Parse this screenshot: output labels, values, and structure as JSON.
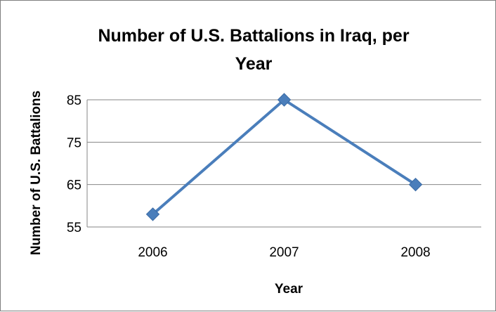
{
  "chart_data": {
    "type": "line",
    "title_lines": [
      "Number of U.S. Battalions in Iraq, per",
      "Year"
    ],
    "xlabel": "Year",
    "ylabel": "Number of U.S. Battalions",
    "categories": [
      "2006",
      "2007",
      "2008"
    ],
    "series": [
      {
        "values": [
          58,
          85,
          65
        ]
      }
    ],
    "yticks": [
      "85",
      "75",
      "65",
      "55"
    ],
    "ylim": [
      55,
      85
    ],
    "grid": true,
    "legend": "none",
    "colors": {
      "series": "#4a7ebb",
      "grid": "#868686",
      "axis": "#868686"
    }
  }
}
